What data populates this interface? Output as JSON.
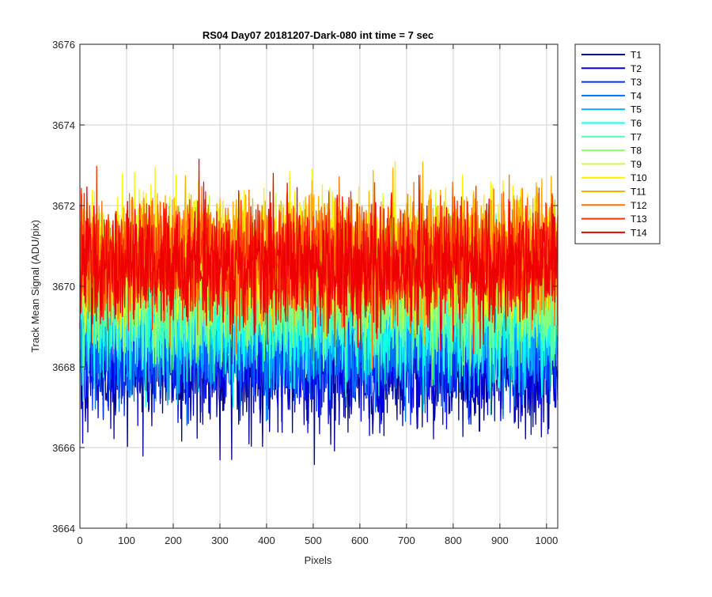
{
  "chart_data": {
    "type": "line",
    "title": "RS04 Day07 20181207-Dark-080 int time = 7 sec",
    "xlabel": "Pixels",
    "ylabel": "Track Mean Signal (ADU/pix)",
    "xlim": [
      0,
      1024
    ],
    "ylim": [
      3664,
      3676
    ],
    "x_ticks": [
      0,
      100,
      200,
      300,
      400,
      500,
      600,
      700,
      800,
      900,
      1000
    ],
    "y_ticks": [
      3664,
      3666,
      3668,
      3670,
      3672,
      3674,
      3676
    ],
    "grid": true,
    "legend_position": "outside-top-right",
    "n_points": 1024,
    "series": [
      {
        "name": "T1",
        "color": "#00008f",
        "mean": 3668.0,
        "noise_sd": 0.75,
        "min": 3664.7,
        "max": 3669.8
      },
      {
        "name": "T2",
        "color": "#0000df",
        "mean": 3668.2,
        "noise_sd": 0.75,
        "min": 3665.3,
        "max": 3670.0
      },
      {
        "name": "T3",
        "color": "#0030ff",
        "mean": 3668.5,
        "noise_sd": 0.75,
        "min": 3665.8,
        "max": 3670.3
      },
      {
        "name": "T4",
        "color": "#0070ff",
        "mean": 3668.7,
        "noise_sd": 0.75,
        "min": 3666.0,
        "max": 3670.6
      },
      {
        "name": "T5",
        "color": "#00afff",
        "mean": 3669.0,
        "noise_sd": 0.75,
        "min": 3666.3,
        "max": 3671.0
      },
      {
        "name": "T6",
        "color": "#10ffef",
        "mean": 3669.2,
        "noise_sd": 0.75,
        "min": 3666.5,
        "max": 3671.3
      },
      {
        "name": "T7",
        "color": "#50ffaf",
        "mean": 3669.5,
        "noise_sd": 0.75,
        "min": 3666.8,
        "max": 3671.8
      },
      {
        "name": "T8",
        "color": "#8fff70",
        "mean": 3669.8,
        "noise_sd": 0.75,
        "min": 3667.0,
        "max": 3672.5
      },
      {
        "name": "T9",
        "color": "#cfff30",
        "mean": 3670.5,
        "noise_sd": 0.75,
        "min": 3667.5,
        "max": 3673.9
      },
      {
        "name": "T10",
        "color": "#ffef00",
        "mean": 3670.8,
        "noise_sd": 0.75,
        "min": 3668.0,
        "max": 3674.2
      },
      {
        "name": "T11",
        "color": "#ffaf00",
        "mean": 3670.8,
        "noise_sd": 0.75,
        "min": 3667.8,
        "max": 3674.1
      },
      {
        "name": "T12",
        "color": "#ff7000",
        "mean": 3670.7,
        "noise_sd": 0.75,
        "min": 3667.5,
        "max": 3673.6
      },
      {
        "name": "T13",
        "color": "#ff3000",
        "mean": 3670.6,
        "noise_sd": 0.75,
        "min": 3667.3,
        "max": 3673.5
      },
      {
        "name": "T14",
        "color": "#ef0000",
        "mean": 3670.5,
        "noise_sd": 0.75,
        "min": 3666.7,
        "max": 3674.4
      }
    ]
  }
}
